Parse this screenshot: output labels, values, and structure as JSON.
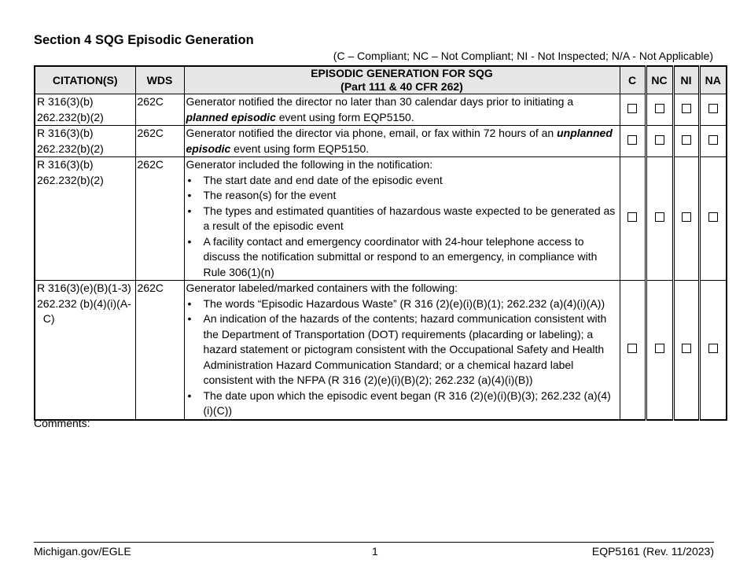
{
  "section_title": "Section 4 SQG Episodic Generation",
  "legend": "(C – Compliant; NC – Not Compliant; NI - Not Inspected; N/A - Not Applicable)",
  "headers": {
    "citation": "CITATION(S)",
    "wds": "WDS",
    "desc_line1": "EPISODIC GENERATION FOR SQG",
    "desc_line2": "(Part 111 & 40 CFR 262)",
    "c": "C",
    "nc": "NC",
    "ni": "NI",
    "na": "NA"
  },
  "rows": [
    {
      "citation": "R 316(3)(b)\n262.232(b)(2)",
      "wds": "262C",
      "text_before": "Generator notified the director no later than 30 calendar days prior to initiating a ",
      "emphasis": "planned episodic",
      "text_after": " event using form EQP5150."
    },
    {
      "citation": "R 316(3)(b)\n262.232(b)(2)",
      "wds": "262C",
      "text_before": "Generator notified the director via phone, email, or fax within 72 hours of an ",
      "emphasis": "unplanned episodic",
      "text_after": " event using form EQP5150."
    },
    {
      "citation": "R 316(3)(b)\n262.232(b)(2)",
      "wds": "262C",
      "intro": "Generator included the following in the notification:",
      "bullets": [
        "The start date and end date of the episodic event",
        "The reason(s) for the event",
        "The types and estimated quantities of hazardous waste expected to be generated as a result of the episodic event",
        "A facility contact and emergency coordinator with 24-hour telephone access to discuss the notification submittal or respond to an emergency, in compliance with Rule 306(1)(n)"
      ]
    },
    {
      "citation": "R 316(3)(e)(B)(1-3)\n262.232 (b)(4)(i)(A-\n  C)",
      "wds": "262C",
      "intro": "Generator labeled/marked containers with the following:",
      "bullets": [
        "The words “Episodic Hazardous Waste” (R 316 (2)(e)(i)(B)(1); 262.232 (a)(4)(i)(A))",
        "An indication of the hazards of the contents; hazard communication consistent with the Department of Transportation (DOT) requirements (placarding or labeling); a hazard statement or pictogram consistent with the Occupational Safety and Health Administration Hazard Communication Standard; or a chemical hazard label consistent with the NFPA (R 316 (2)(e)(i)(B)(2); 262.232 (a)(4)(i)(B))",
        "The date upon which the episodic event began (R 316 (2)(e)(i)(B)(3); 262.232 (a)(4)(i)(C))"
      ]
    }
  ],
  "comments_label": "Comments:",
  "footer": {
    "left": "Michigan.gov/EGLE",
    "center": "1",
    "right": "EQP5161 (Rev. 11/2023)"
  }
}
